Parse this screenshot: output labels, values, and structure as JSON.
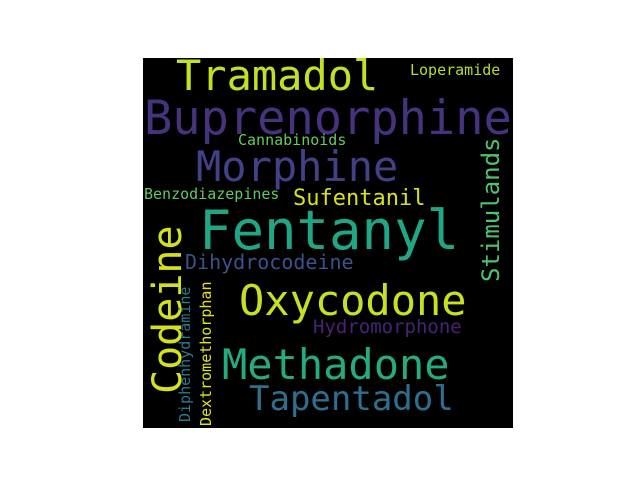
{
  "words": [
    {
      "text": "Fentanyl",
      "color": "#21a685"
    },
    {
      "text": "Buprenorphine",
      "color": "#46337e"
    },
    {
      "text": "Oxycodone",
      "color": "#c8e020"
    },
    {
      "text": "Methadone",
      "color": "#25ab82"
    },
    {
      "text": "Morphine",
      "color": "#424086"
    },
    {
      "text": "Tramadol",
      "color": "#c5e021"
    },
    {
      "text": "Codeine",
      "color": "#d5e21a"
    },
    {
      "text": "Tapentadol",
      "color": "#2e6e8e"
    },
    {
      "text": "Stimulands",
      "color": "#4ec36b"
    },
    {
      "text": "Sufentanil",
      "color": "#d8e219"
    },
    {
      "text": "Dihydrocodeine",
      "color": "#3b528b"
    },
    {
      "text": "Hydromorphone",
      "color": "#482374"
    },
    {
      "text": "Cannabinoids",
      "color": "#65cb5e"
    },
    {
      "text": "Benzodiazepines",
      "color": "#5ec962"
    },
    {
      "text": "Loperamide",
      "color": "#b5de2b"
    },
    {
      "text": "Dextromethorphan",
      "color": "#dfe318"
    },
    {
      "text": "Diphenhydramine",
      "color": "#2a788e"
    }
  ]
}
